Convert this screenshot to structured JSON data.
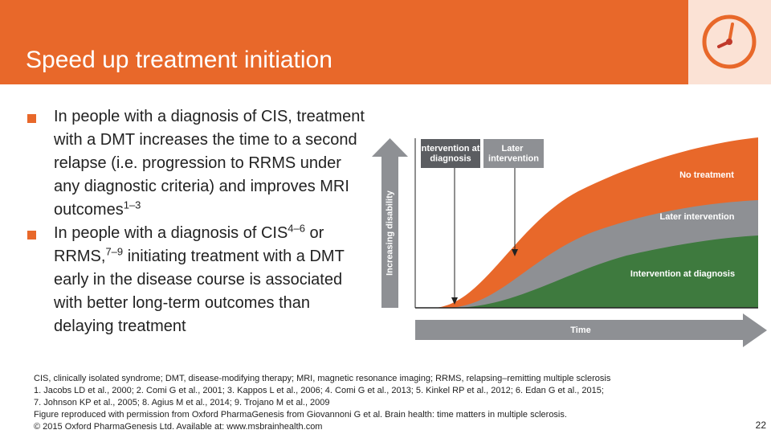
{
  "header": {
    "title": "Speed up treatment initiation"
  },
  "bullets": [
    {
      "text": "In people with a diagnosis of CIS, treatment with a DMT increases the time to a second relapse (i.e. progression to RRMS under any diagnostic criteria) and improves MRI outcomes",
      "sup": "1–3"
    },
    {
      "segments": [
        "In people with a diagnosis of CIS",
        "4–6",
        " or RRMS,",
        "7–9",
        " initiating treatment with a DMT early in the disease course is associated with better long-term outcomes than delaying treatment"
      ]
    }
  ],
  "figure": {
    "y_axis_label": "Increasing disability",
    "x_axis_label": "Time",
    "markers": [
      "Intervention at diagnosis",
      "Later intervention"
    ],
    "curves": [
      "No treatment",
      "Later intervention",
      "Intervention at diagnosis"
    ]
  },
  "footnotes": [
    "CIS, clinically isolated syndrome; DMT, disease-modifying therapy; MRI, magnetic resonance imaging; RRMS, relapsing–remitting multiple sclerosis",
    "1. Jacobs LD et al., 2000; 2. Comi G et al., 2001; 3. Kappos L et al., 2006; 4. Comi G et al., 2013; 5. Kinkel RP et al., 2012; 6. Edan G et al., 2015;",
    "7. Johnson KP et al., 2005; 8. Agius M et al., 2014; 9. Trojano M et al., 2009",
    "Figure reproduced with permission from Oxford PharmaGenesis from Giovannoni G et al. Brain health: time matters in multiple sclerosis.",
    "© 2015 Oxford PharmaGenesis Ltd. Available at: www.msbrainhealth.com"
  ],
  "page_number": "22"
}
